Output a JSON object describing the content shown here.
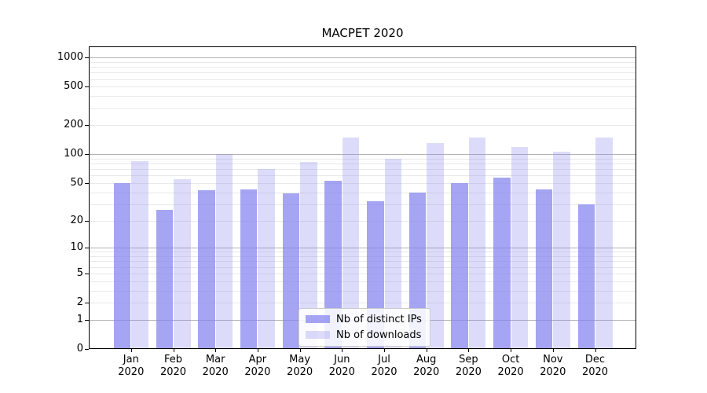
{
  "figure": {
    "title": "MACPET 2020"
  },
  "chart_data": {
    "type": "bar",
    "title": "MACPET 2020",
    "xlabel": "",
    "ylabel": "",
    "yscale": "log1p",
    "ylim": [
      0,
      1305
    ],
    "yticks": [
      0,
      1,
      2,
      5,
      10,
      20,
      50,
      100,
      200,
      500,
      1000
    ],
    "grid": "on",
    "grid_major": [
      1,
      10,
      100,
      1000
    ],
    "grid_minor": [
      2,
      3,
      4,
      5,
      6,
      7,
      8,
      9,
      20,
      30,
      40,
      50,
      60,
      70,
      80,
      90,
      200,
      300,
      400,
      500,
      600,
      700,
      800,
      900
    ],
    "categories": [
      "Jan",
      "Feb",
      "Mar",
      "Apr",
      "May",
      "Jun",
      "Jul",
      "Aug",
      "Sep",
      "Oct",
      "Nov",
      "Dec"
    ],
    "year": "2020",
    "legend_position": "lower center",
    "series": [
      {
        "name": "Nb of distinct IPs",
        "color": "rgba(130,130,238,0.72)",
        "values": [
          50,
          26,
          42,
          43,
          39,
          53,
          32,
          40,
          50,
          57,
          43,
          30
        ]
      },
      {
        "name": "Nb of downloads",
        "color": "rgba(130,130,238,0.28)",
        "values": [
          85,
          55,
          101,
          71,
          83,
          150,
          90,
          130,
          150,
          120,
          107,
          150
        ]
      }
    ]
  }
}
